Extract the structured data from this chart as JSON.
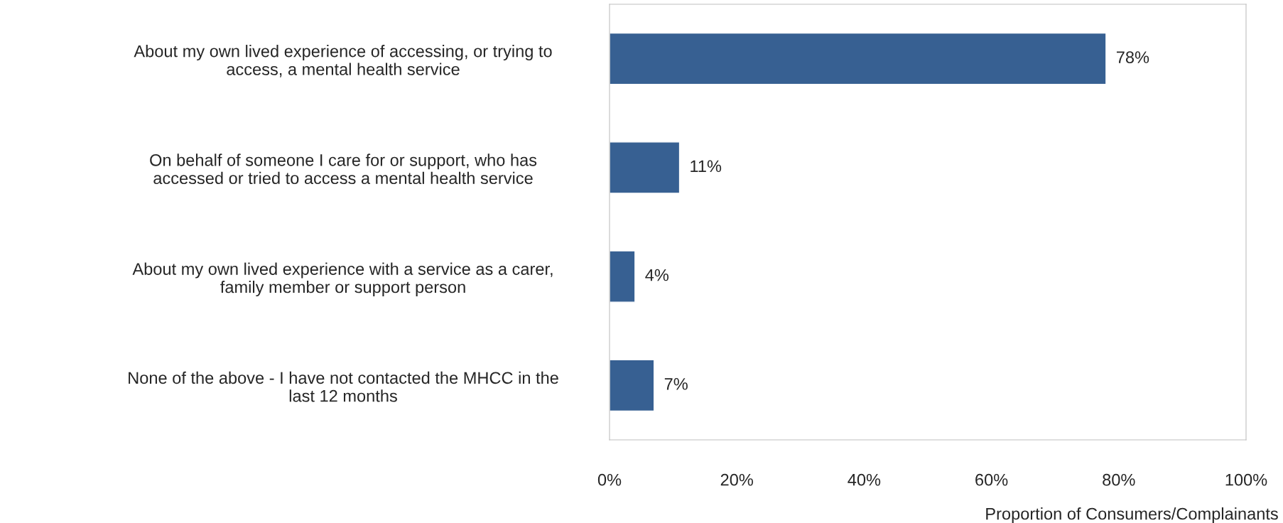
{
  "chart_data": {
    "type": "bar",
    "orientation": "horizontal",
    "xlabel": "Proportion of Consumers/Complainants",
    "categories": [
      "About my own lived experience of accessing, or trying to\naccess, a mental health service",
      "On behalf of someone I care for or support, who has\naccessed or tried to access a mental health service",
      "About my own lived experience with a service as a carer,\nfamily member or support person",
      "None of the above - I have not contacted the MHCC in the\nlast 12 months"
    ],
    "values": [
      78,
      11,
      4,
      7
    ],
    "color": "#376092",
    "value_labels": [
      "78%",
      "11%",
      "4%",
      "7%"
    ],
    "xlim": [
      0,
      100
    ],
    "xticks": [
      {
        "value": 0,
        "label": "0%"
      },
      {
        "value": 20,
        "label": "20%"
      },
      {
        "value": 40,
        "label": "40%"
      },
      {
        "value": 60,
        "label": "60%"
      },
      {
        "value": 80,
        "label": "80%"
      },
      {
        "value": 100,
        "label": "100%"
      }
    ],
    "grid": false
  }
}
